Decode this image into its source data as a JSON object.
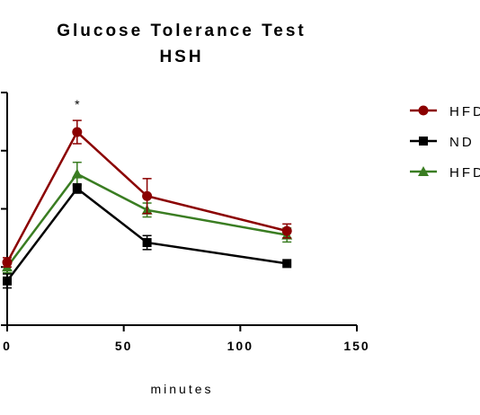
{
  "chart_data": {
    "type": "line",
    "title": "Glucose Tolerance Test",
    "subtitle": "HSH",
    "xlabel": "minutes",
    "ylabel": "",
    "xlim": [
      0,
      150
    ],
    "xticks": [
      0,
      50,
      100,
      150
    ],
    "xtick_labels": [
      "0",
      "50",
      "100",
      "150"
    ],
    "ylim": [
      0,
      400
    ],
    "yticks": [
      0,
      100,
      200,
      300,
      400
    ],
    "legend_position": "right",
    "annotations": [
      {
        "text": "*",
        "x": 30
      }
    ],
    "series": [
      {
        "name": "HFD",
        "color": "#8b0000",
        "marker": "circle",
        "x": [
          0,
          30,
          60,
          120
        ],
        "y": [
          108,
          332,
          222,
          162
        ],
        "err": [
          8,
          20,
          30,
          12
        ]
      },
      {
        "name": "ND",
        "color": "#000000",
        "marker": "square",
        "x": [
          0,
          30,
          60,
          120
        ],
        "y": [
          76,
          235,
          142,
          106
        ],
        "err": [
          12,
          8,
          12,
          0
        ]
      },
      {
        "name": "HFD",
        "color": "#3a7d22",
        "marker": "triangle",
        "x": [
          0,
          30,
          60,
          120
        ],
        "y": [
          100,
          260,
          198,
          155
        ],
        "err": [
          10,
          20,
          12,
          12
        ]
      }
    ]
  }
}
